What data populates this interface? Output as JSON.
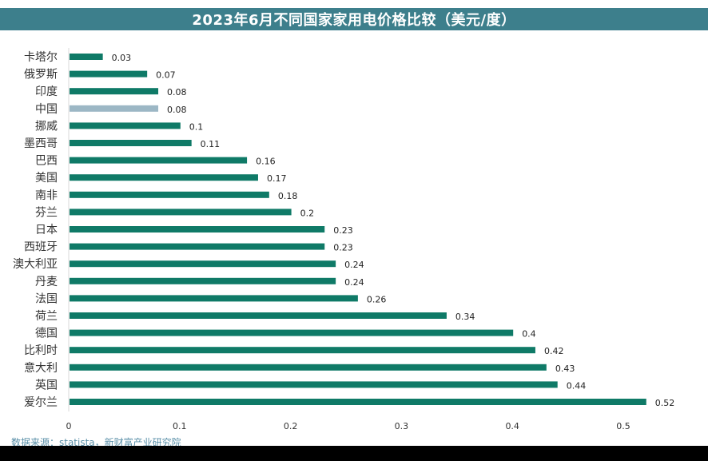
{
  "chart_data": {
    "type": "bar",
    "orientation": "horizontal",
    "title": "2023年6月不同国家家用电价格比较（美元/度）",
    "categories": [
      "卡塔尔",
      "俄罗斯",
      "印度",
      "中国",
      "挪威",
      "墨西哥",
      "巴西",
      "美国",
      "南非",
      "芬兰",
      "日本",
      "西班牙",
      "澳大利亚",
      "丹麦",
      "法国",
      "荷兰",
      "德国",
      "比利时",
      "意大利",
      "英国",
      "爱尔兰"
    ],
    "values": [
      0.03,
      0.07,
      0.08,
      0.08,
      0.1,
      0.11,
      0.16,
      0.17,
      0.18,
      0.2,
      0.23,
      0.23,
      0.24,
      0.24,
      0.26,
      0.34,
      0.4,
      0.42,
      0.43,
      0.44,
      0.52
    ],
    "value_labels": [
      "0.03",
      "0.07",
      "0.08",
      "0.08",
      "0.1",
      "0.11",
      "0.16",
      "0.17",
      "0.18",
      "0.2",
      "0.23",
      "0.23",
      "0.24",
      "0.24",
      "0.26",
      "0.34",
      "0.4",
      "0.42",
      "0.43",
      "0.44",
      "0.52"
    ],
    "xlim": [
      0,
      0.55
    ],
    "xticks": [
      0,
      0.1,
      0.2,
      0.3,
      0.4,
      0.5
    ],
    "xtick_labels": [
      "0",
      "0.1",
      "0.2",
      "0.3",
      "0.4",
      "0.5"
    ],
    "xlabel": "",
    "ylabel": "",
    "grid": false,
    "legend": "none",
    "highlight_category": "中国",
    "colors": {
      "bar": "#0f7a67",
      "highlight": "#9cb7c5",
      "title_bg": "#3d7f8c"
    }
  },
  "source_text": "数据来源：statista，新财富产业研究院"
}
